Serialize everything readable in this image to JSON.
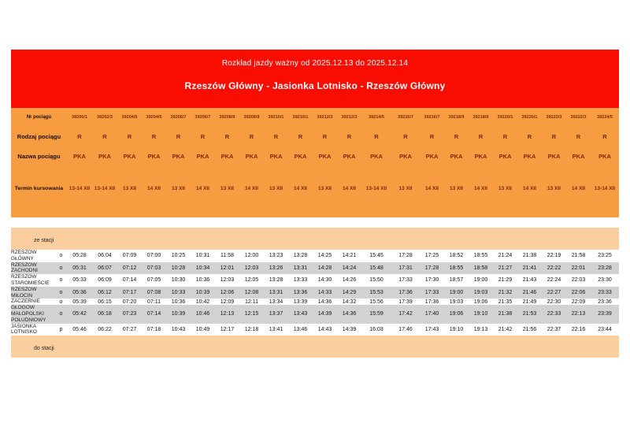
{
  "header": {
    "validity": "Rozkład jazdy ważny od 2025.12.13 do 2025.12.14",
    "route": "Rzeszów Główny - Jasionka Lotnisko - Rzeszów Główny"
  },
  "info_rows": {
    "nr_label": "Nr pociągu",
    "rodzaj_label": "Rodzaj pociągu",
    "nazwa_label": "Nazwa pociągu",
    "termin_label": "Termin kursowania"
  },
  "sections": {
    "from_label": "ze stacji",
    "to_label": "do stacji"
  },
  "columns": [
    {
      "nr": "39200/1",
      "rodzaj": "R",
      "nazwa": "PKA",
      "termin": "13-14 XII"
    },
    {
      "nr": "39202/3",
      "rodzaj": "R",
      "nazwa": "PKA",
      "termin": "13-14 XII"
    },
    {
      "nr": "39204/5",
      "rodzaj": "R",
      "nazwa": "PKA",
      "termin": "13 XII"
    },
    {
      "nr": "39204/5",
      "rodzaj": "R",
      "nazwa": "PKA",
      "termin": "14 XII"
    },
    {
      "nr": "39206/7",
      "rodzaj": "R",
      "nazwa": "PKA",
      "termin": "13 XII"
    },
    {
      "nr": "39206/7",
      "rodzaj": "R",
      "nazwa": "PKA",
      "termin": "14 XII"
    },
    {
      "nr": "39208/9",
      "rodzaj": "R",
      "nazwa": "PKA",
      "termin": "13 XII"
    },
    {
      "nr": "39208/9",
      "rodzaj": "R",
      "nazwa": "PKA",
      "termin": "14 XII"
    },
    {
      "nr": "39210/1",
      "rodzaj": "R",
      "nazwa": "PKA",
      "termin": "13 XII"
    },
    {
      "nr": "39210/1",
      "rodzaj": "R",
      "nazwa": "PKA",
      "termin": "14 XII"
    },
    {
      "nr": "39212/3",
      "rodzaj": "R",
      "nazwa": "PKA",
      "termin": "13 XII"
    },
    {
      "nr": "39212/3",
      "rodzaj": "R",
      "nazwa": "PKA",
      "termin": "14 XII"
    },
    {
      "nr": "39214/5",
      "rodzaj": "R",
      "nazwa": "PKA",
      "termin": "13-14 XII"
    },
    {
      "nr": "39216/7",
      "rodzaj": "R",
      "nazwa": "PKA",
      "termin": "13 XII"
    },
    {
      "nr": "39216/7",
      "rodzaj": "R",
      "nazwa": "PKA",
      "termin": "14 XII"
    },
    {
      "nr": "39218/9",
      "rodzaj": "R",
      "nazwa": "PKA",
      "termin": "13 XII"
    },
    {
      "nr": "39218/9",
      "rodzaj": "R",
      "nazwa": "PKA",
      "termin": "14 XII"
    },
    {
      "nr": "39220/1",
      "rodzaj": "R",
      "nazwa": "PKA",
      "termin": "13 XII"
    },
    {
      "nr": "39220/1",
      "rodzaj": "R",
      "nazwa": "PKA",
      "termin": "14 XII"
    },
    {
      "nr": "39222/3",
      "rodzaj": "R",
      "nazwa": "PKA",
      "termin": "13 XII"
    },
    {
      "nr": "39222/3",
      "rodzaj": "R",
      "nazwa": "PKA",
      "termin": "14 XII"
    },
    {
      "nr": "39224/5",
      "rodzaj": "R",
      "nazwa": "PKA",
      "termin": "13-14 XII"
    }
  ],
  "stations": [
    {
      "name": "RZESZÓW GŁÓWNY",
      "type": "o",
      "times": [
        "05:28",
        "06:04",
        "07:09",
        "07:00",
        "10:25",
        "10:31",
        "11:58",
        "12:00",
        "13:23",
        "13:28",
        "14:25",
        "14:21",
        "15:45",
        "17:28",
        "17:25",
        "18:52",
        "18:55",
        "21:24",
        "21:38",
        "22:19",
        "21:58",
        "23:25"
      ]
    },
    {
      "name": "RZESZÓW ZACHODNI",
      "type": "o",
      "times": [
        "05:31",
        "06:07",
        "07:12",
        "07:03",
        "10:28",
        "10:34",
        "12:01",
        "12:03",
        "13:26",
        "13:31",
        "14:28",
        "14:24",
        "15:48",
        "17:31",
        "17:28",
        "18:55",
        "18:58",
        "21:27",
        "21:41",
        "22:22",
        "22:01",
        "23:28"
      ]
    },
    {
      "name": "RZESZÓW STAROMIEŚCIE",
      "type": "o",
      "times": [
        "05:33",
        "06:09",
        "07:14",
        "07:05",
        "10:30",
        "10:36",
        "12:03",
        "12:05",
        "13:28",
        "13:33",
        "14:30",
        "14:26",
        "15:50",
        "17:33",
        "17:30",
        "18:57",
        "19:00",
        "21:29",
        "21:43",
        "22:24",
        "22:03",
        "23:30"
      ]
    },
    {
      "name": "RZESZÓW MIŁOCIN",
      "type": "o",
      "times": [
        "05:36",
        "06:12",
        "07:17",
        "07:08",
        "10:33",
        "10:39",
        "12:06",
        "12:08",
        "13:31",
        "13:36",
        "14:33",
        "14:29",
        "15:53",
        "17:36",
        "17:33",
        "19:00",
        "19:03",
        "21:32",
        "21:46",
        "22:27",
        "22:06",
        "23:33"
      ]
    },
    {
      "name": "ZACZERNIE",
      "type": "o",
      "times": [
        "05:39",
        "06:15",
        "07:20",
        "07:11",
        "10:36",
        "10:42",
        "12:09",
        "12:11",
        "13:34",
        "13:39",
        "14:36",
        "14:32",
        "15:56",
        "17:39",
        "17:36",
        "19:03",
        "19:06",
        "21:35",
        "21:49",
        "22:30",
        "22:09",
        "23:36"
      ]
    },
    {
      "name": "GŁOGÓW MAŁOPOLSKI POŁUDNIOWY",
      "type": "o",
      "times": [
        "05:42",
        "06:18",
        "07:23",
        "07:14",
        "10:39",
        "10:46",
        "12:13",
        "12:15",
        "13:37",
        "13:43",
        "14:39",
        "14:36",
        "15:59",
        "17:42",
        "17:40",
        "19:06",
        "19:10",
        "21:38",
        "21:53",
        "22:33",
        "22:13",
        "23:39"
      ]
    },
    {
      "name": "JASIONKA LOTNISKO",
      "type": "p",
      "times": [
        "05:46",
        "06:22",
        "07:27",
        "07:18",
        "10:43",
        "10:49",
        "12:17",
        "12:18",
        "13:41",
        "13:46",
        "14:43",
        "14:39",
        "16:03",
        "17:46",
        "17:43",
        "19:10",
        "19:13",
        "21:42",
        "21:56",
        "22:37",
        "22:16",
        "23:44"
      ]
    }
  ],
  "colors": {
    "header_red": "#f90d00",
    "info_orange": "#f89c42",
    "band_peach": "#fbce9f",
    "zebra_gray": "#d2d2d2",
    "value_maroon": "#7b2a00"
  }
}
